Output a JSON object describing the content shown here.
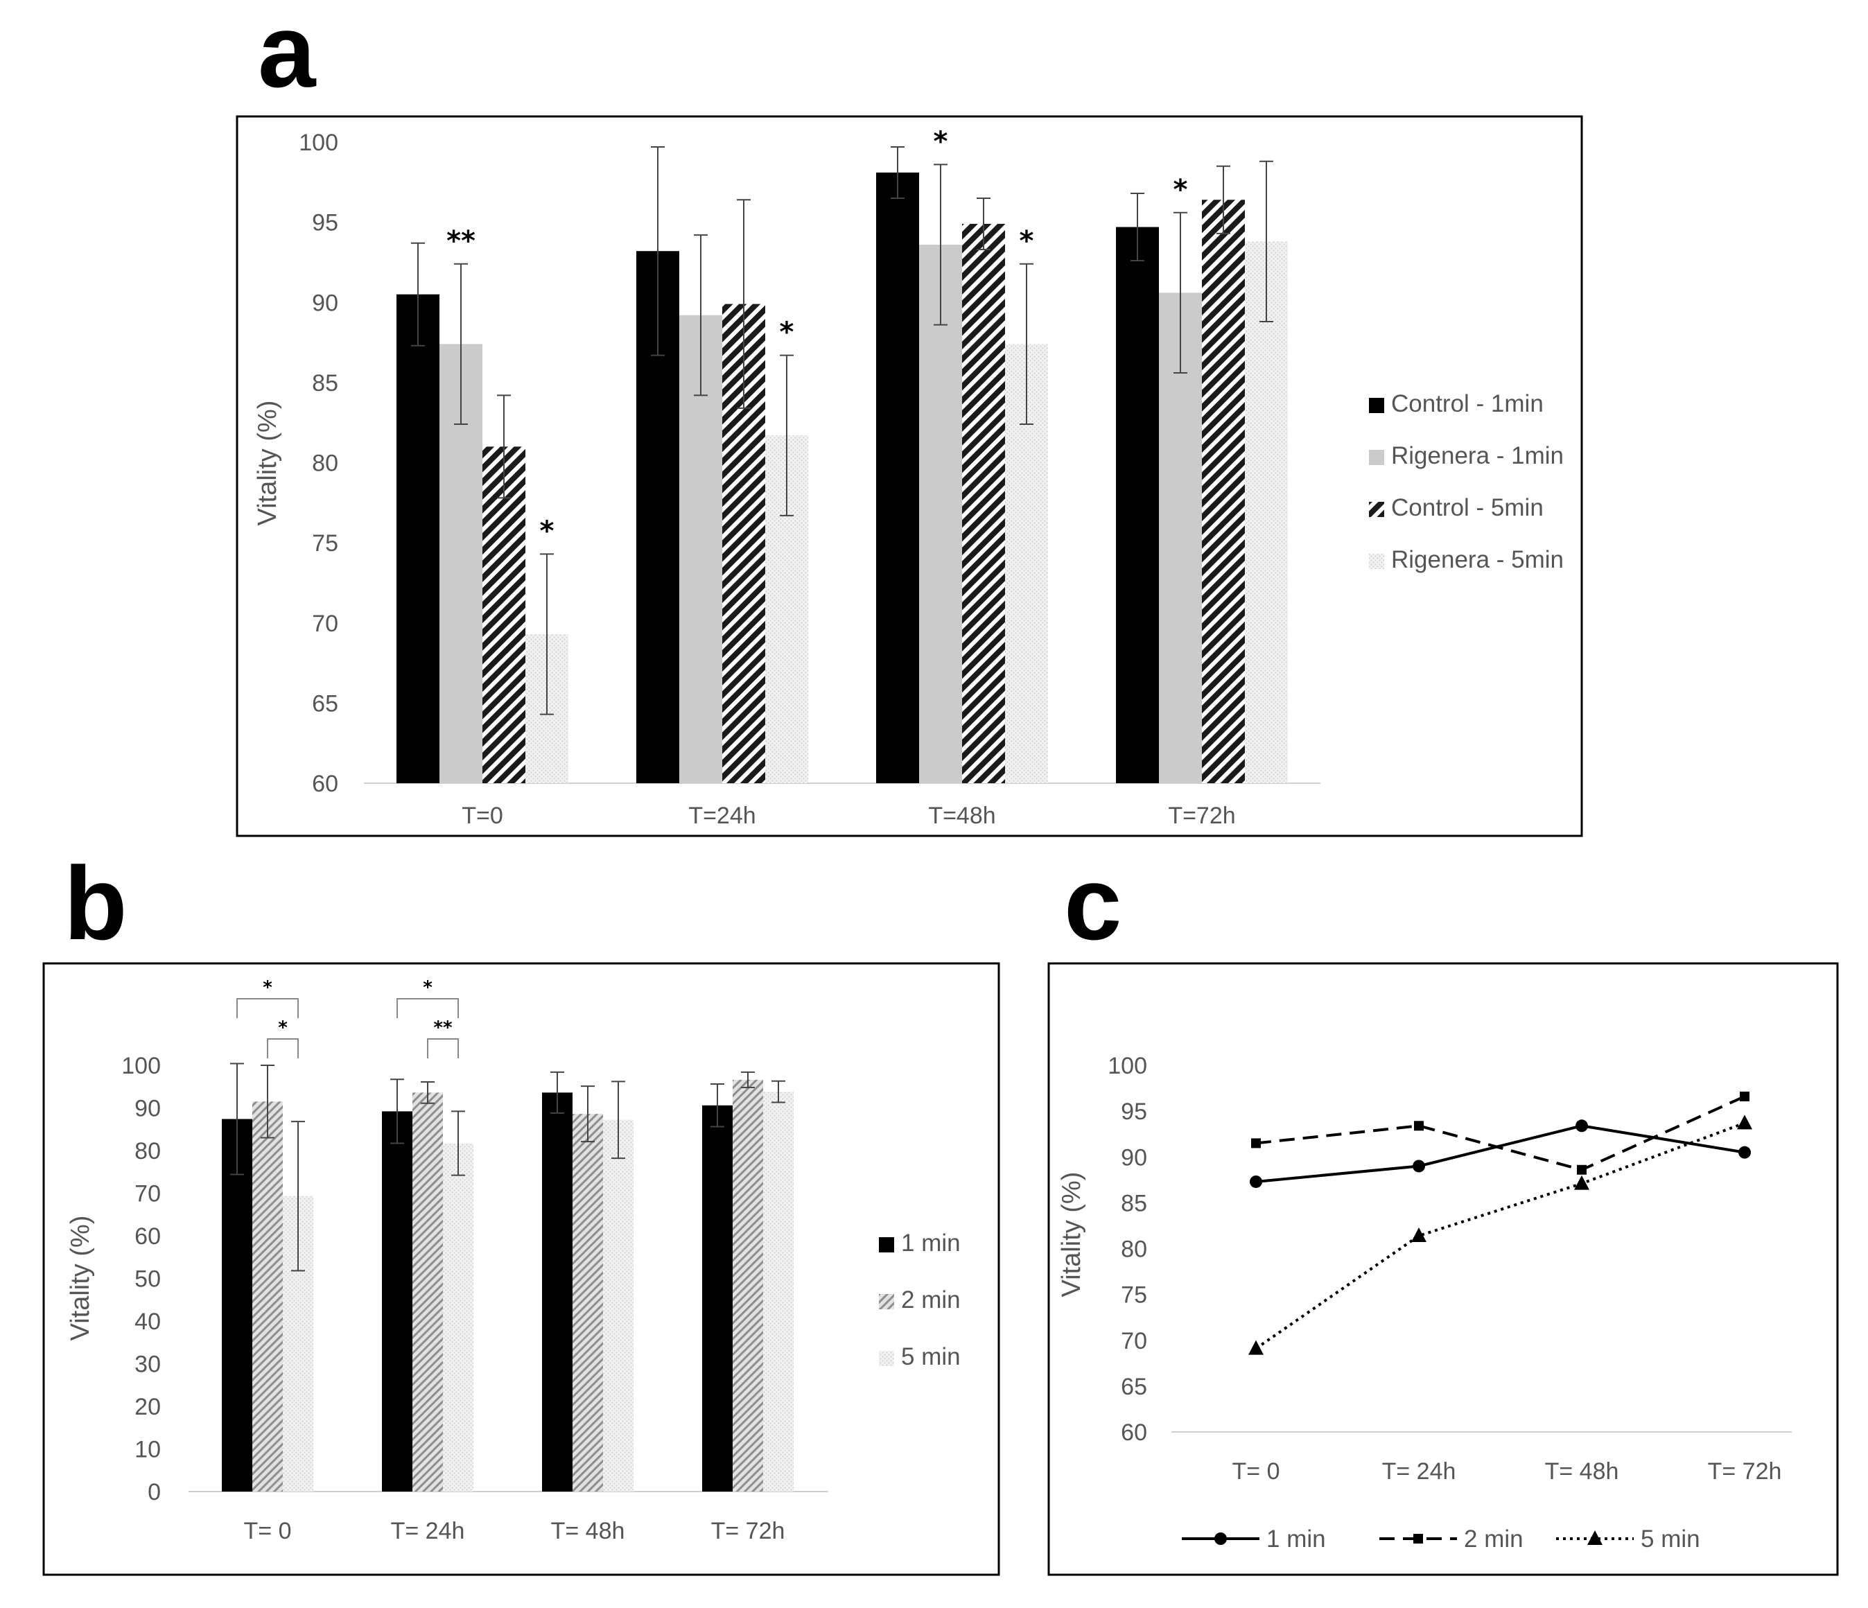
{
  "figure": {
    "panel_letters": [
      "a",
      "b",
      "c"
    ]
  },
  "chart_data": [
    {
      "panel": "a",
      "type": "bar",
      "ylabel": "Vitality (%)",
      "ylim": [
        60,
        100
      ],
      "yticks": [
        100,
        95,
        90,
        85,
        80,
        75,
        70,
        65,
        60
      ],
      "categories": [
        "T=0",
        "T=24h",
        "T=48h",
        "T=72h"
      ],
      "legend_position": "right",
      "series": [
        {
          "name": "Control - 1min",
          "fill": "black",
          "values": [
            90.5,
            93.2,
            98.1,
            94.7
          ],
          "errors": [
            3.2,
            6.5,
            1.6,
            2.1
          ]
        },
        {
          "name": "Rigenera - 1min",
          "fill": "grey",
          "values": [
            87.4,
            89.2,
            93.6,
            90.6
          ],
          "errors": [
            5.0,
            5.0,
            5.0,
            5.0
          ]
        },
        {
          "name": "Control - 5min",
          "fill": "hatch-dark",
          "values": [
            81.0,
            89.9,
            94.9,
            96.4
          ],
          "errors": [
            3.2,
            6.5,
            1.6,
            2.1
          ]
        },
        {
          "name": "Rigenera - 5min",
          "fill": "dots-light",
          "values": [
            69.3,
            81.7,
            87.4,
            93.8
          ],
          "errors": [
            5.0,
            5.0,
            5.0,
            5.0
          ]
        }
      ],
      "annotations": [
        {
          "text": "**",
          "category": 0,
          "series": 1
        },
        {
          "text": "*",
          "category": 0,
          "series": 3
        },
        {
          "text": "*",
          "category": 1,
          "series": 3
        },
        {
          "text": "*",
          "category": 2,
          "series": 1
        },
        {
          "text": "*",
          "category": 2,
          "series": 3
        },
        {
          "text": "*",
          "category": 3,
          "series": 1
        }
      ]
    },
    {
      "panel": "b",
      "type": "bar",
      "ylabel": "Vitality (%)",
      "ylim": [
        0,
        100
      ],
      "yticks": [
        100,
        90,
        80,
        70,
        60,
        50,
        40,
        30,
        20,
        10,
        0
      ],
      "categories": [
        "T= 0",
        "T= 24h",
        "T= 48h",
        "T= 72h"
      ],
      "legend_position": "right",
      "series": [
        {
          "name": "1 min",
          "fill": "black",
          "values": [
            87.4,
            89.2,
            93.6,
            90.6
          ],
          "errors": [
            13.0,
            7.5,
            4.8,
            5.0
          ]
        },
        {
          "name": "2 min",
          "fill": "hatch-grey",
          "values": [
            91.5,
            93.6,
            88.6,
            96.6
          ],
          "errors": [
            8.5,
            2.5,
            6.5,
            1.8
          ]
        },
        {
          "name": "5 min",
          "fill": "dots-light",
          "values": [
            69.3,
            81.7,
            87.2,
            93.8
          ],
          "errors": [
            17.5,
            7.5,
            9.0,
            2.5
          ]
        }
      ],
      "brackets": [
        {
          "text": "*",
          "category": 0,
          "from": 0,
          "to": 2,
          "level": 0
        },
        {
          "text": "*",
          "category": 0,
          "from": 1,
          "to": 2,
          "level": 1
        },
        {
          "text": "*",
          "category": 1,
          "from": 0,
          "to": 2,
          "level": 0
        },
        {
          "text": "**",
          "category": 1,
          "from": 1,
          "to": 2,
          "level": 1
        }
      ]
    },
    {
      "panel": "c",
      "type": "line",
      "ylabel": "Vitality (%)",
      "ylim": [
        60,
        100
      ],
      "yticks": [
        100,
        95,
        90,
        85,
        80,
        75,
        70,
        65,
        60
      ],
      "categories": [
        "T= 0",
        "T= 24h",
        "T= 48h",
        "T= 72h"
      ],
      "legend_position": "bottom",
      "series": [
        {
          "name": "1 min",
          "style": "solid",
          "marker": "circle",
          "values": [
            87.3,
            89.0,
            93.4,
            90.5
          ]
        },
        {
          "name": "2 min",
          "style": "dashed",
          "marker": "square",
          "values": [
            91.5,
            93.4,
            88.6,
            96.6
          ]
        },
        {
          "name": "5 min",
          "style": "dotted",
          "marker": "triangle",
          "values": [
            69.1,
            81.4,
            87.1,
            93.7
          ]
        }
      ]
    }
  ]
}
